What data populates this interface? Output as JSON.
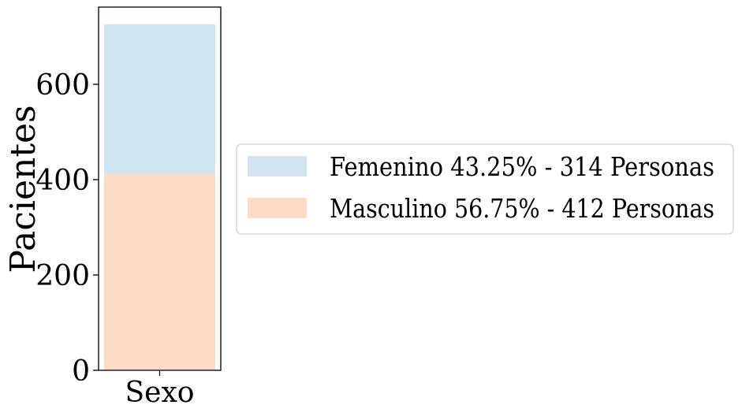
{
  "chart_data": {
    "type": "bar",
    "stacked": true,
    "categories": [
      "Sexo"
    ],
    "series": [
      {
        "name": "Masculino 56.75% - 412 Personas",
        "values": [
          412
        ],
        "color": "#fedbc7"
      },
      {
        "name": "Femenino 43.25% - 314 Personas",
        "values": [
          314
        ],
        "color": "#d1e5f0"
      }
    ],
    "legend_order": [
      1,
      0
    ],
    "legend_position": "center-right outside",
    "ylabel": "Pacientes",
    "xlabel": "",
    "ylim": [
      0,
      762
    ],
    "yticks": [
      0,
      200,
      400,
      600
    ],
    "grid": false
  }
}
